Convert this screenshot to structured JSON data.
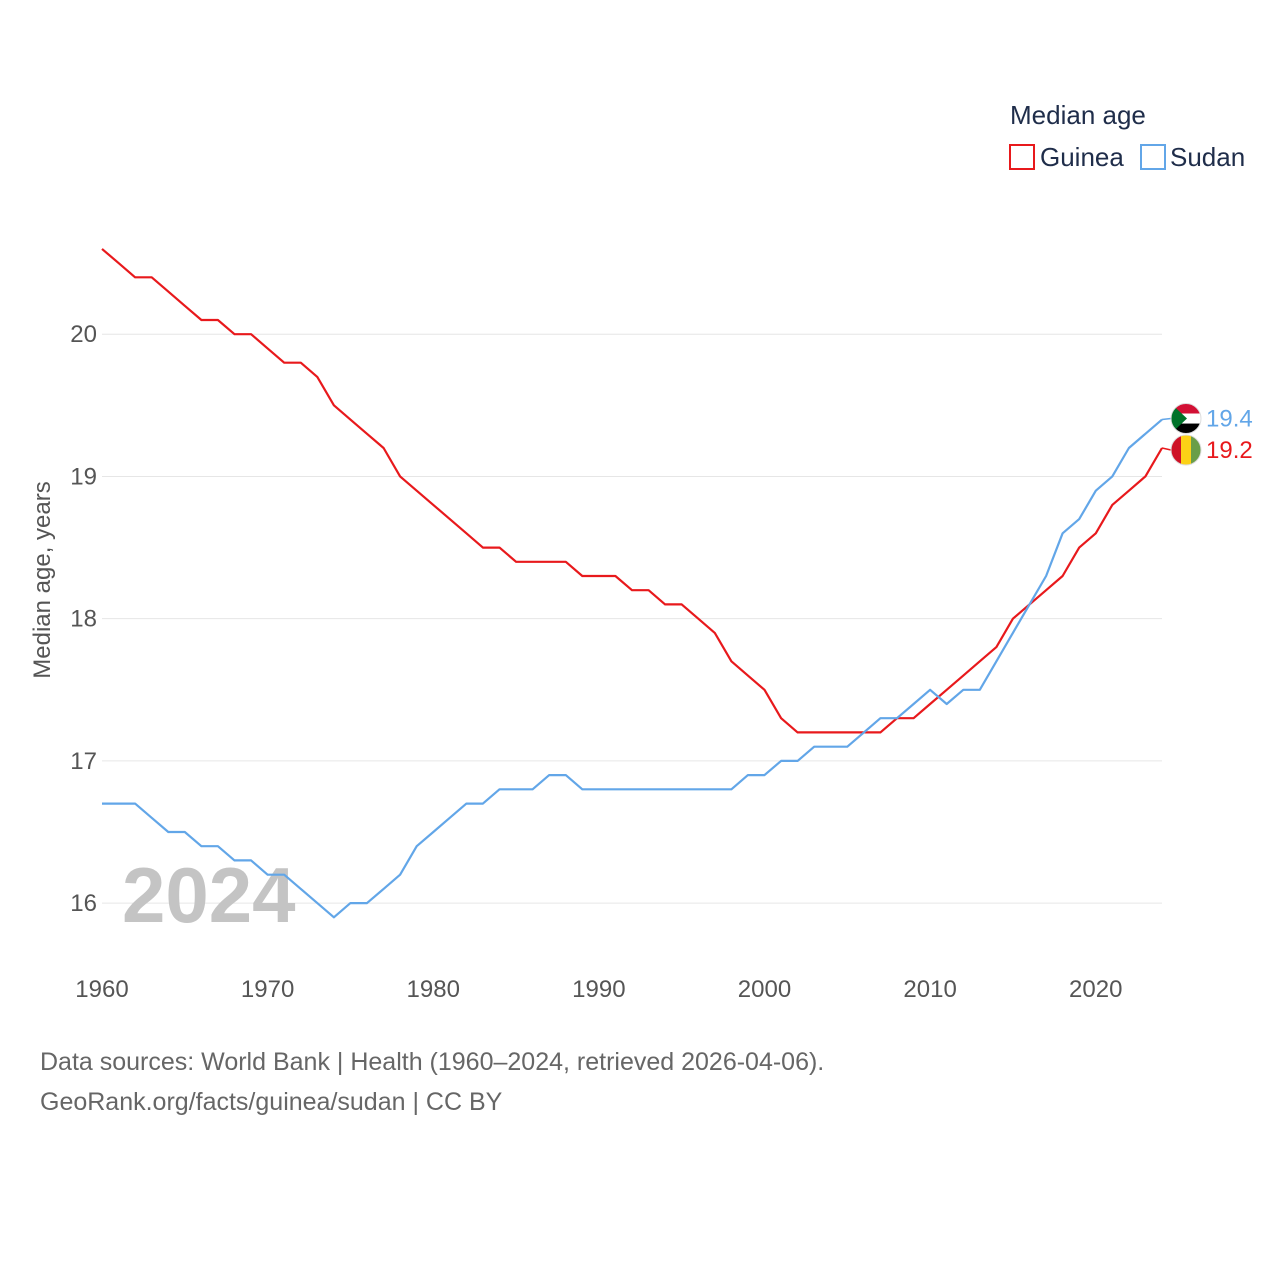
{
  "chart_data": {
    "type": "line",
    "title": "",
    "xlabel": "",
    "ylabel": "Median age, years",
    "xlim": [
      1960,
      2024
    ],
    "ylim": [
      15.6,
      21.0
    ],
    "yticks": [
      16,
      17,
      18,
      19,
      20
    ],
    "xticks": [
      1960,
      1970,
      1980,
      1990,
      2000,
      2010,
      2020
    ],
    "x": [
      1960,
      1961,
      1962,
      1963,
      1964,
      1965,
      1966,
      1967,
      1968,
      1969,
      1970,
      1971,
      1972,
      1973,
      1974,
      1975,
      1976,
      1977,
      1978,
      1979,
      1980,
      1981,
      1982,
      1983,
      1984,
      1985,
      1986,
      1987,
      1988,
      1989,
      1990,
      1991,
      1992,
      1993,
      1994,
      1995,
      1996,
      1997,
      1998,
      1999,
      2000,
      2001,
      2002,
      2003,
      2004,
      2005,
      2006,
      2007,
      2008,
      2009,
      2010,
      2011,
      2012,
      2013,
      2014,
      2015,
      2016,
      2017,
      2018,
      2019,
      2020,
      2021,
      2022,
      2023,
      2024
    ],
    "series": [
      {
        "name": "Guinea",
        "color": "#e8191c",
        "values": [
          20.6,
          20.5,
          20.4,
          20.4,
          20.3,
          20.2,
          20.1,
          20.1,
          20.0,
          20.0,
          19.9,
          19.8,
          19.8,
          19.7,
          19.5,
          19.4,
          19.3,
          19.2,
          19.0,
          18.9,
          18.8,
          18.7,
          18.6,
          18.5,
          18.5,
          18.4,
          18.4,
          18.4,
          18.4,
          18.3,
          18.3,
          18.3,
          18.2,
          18.2,
          18.1,
          18.1,
          18.0,
          17.9,
          17.7,
          17.6,
          17.5,
          17.3,
          17.2,
          17.2,
          17.2,
          17.2,
          17.2,
          17.2,
          17.3,
          17.3,
          17.4,
          17.5,
          17.6,
          17.7,
          17.8,
          18.0,
          18.1,
          18.2,
          18.3,
          18.5,
          18.6,
          18.8,
          18.9,
          19.0,
          19.2
        ],
        "end_label": "19.2"
      },
      {
        "name": "Sudan",
        "color": "#62a6e8",
        "values": [
          16.7,
          16.7,
          16.7,
          16.6,
          16.5,
          16.5,
          16.4,
          16.4,
          16.3,
          16.3,
          16.2,
          16.2,
          16.1,
          16.0,
          15.9,
          16.0,
          16.0,
          16.1,
          16.2,
          16.4,
          16.5,
          16.6,
          16.7,
          16.7,
          16.8,
          16.8,
          16.8,
          16.9,
          16.9,
          16.8,
          16.8,
          16.8,
          16.8,
          16.8,
          16.8,
          16.8,
          16.8,
          16.8,
          16.8,
          16.9,
          16.9,
          17.0,
          17.0,
          17.1,
          17.1,
          17.1,
          17.2,
          17.3,
          17.3,
          17.4,
          17.5,
          17.4,
          17.5,
          17.5,
          17.7,
          17.9,
          18.1,
          18.3,
          18.6,
          18.7,
          18.9,
          19.0,
          19.2,
          19.3,
          19.4
        ],
        "end_label": "19.4"
      }
    ],
    "legend": {
      "title": "Median age",
      "position": "top-right"
    },
    "year_watermark": "2024",
    "grid": true
  },
  "flags": {
    "sudan": "sudan-flag-icon",
    "guinea": "guinea-flag-icon"
  },
  "footer": {
    "line1": "Data sources: World Bank | Health (1960–2024, retrieved 2026-04-06).",
    "line2": "GeoRank.org/facts/guinea/sudan | CC BY"
  }
}
